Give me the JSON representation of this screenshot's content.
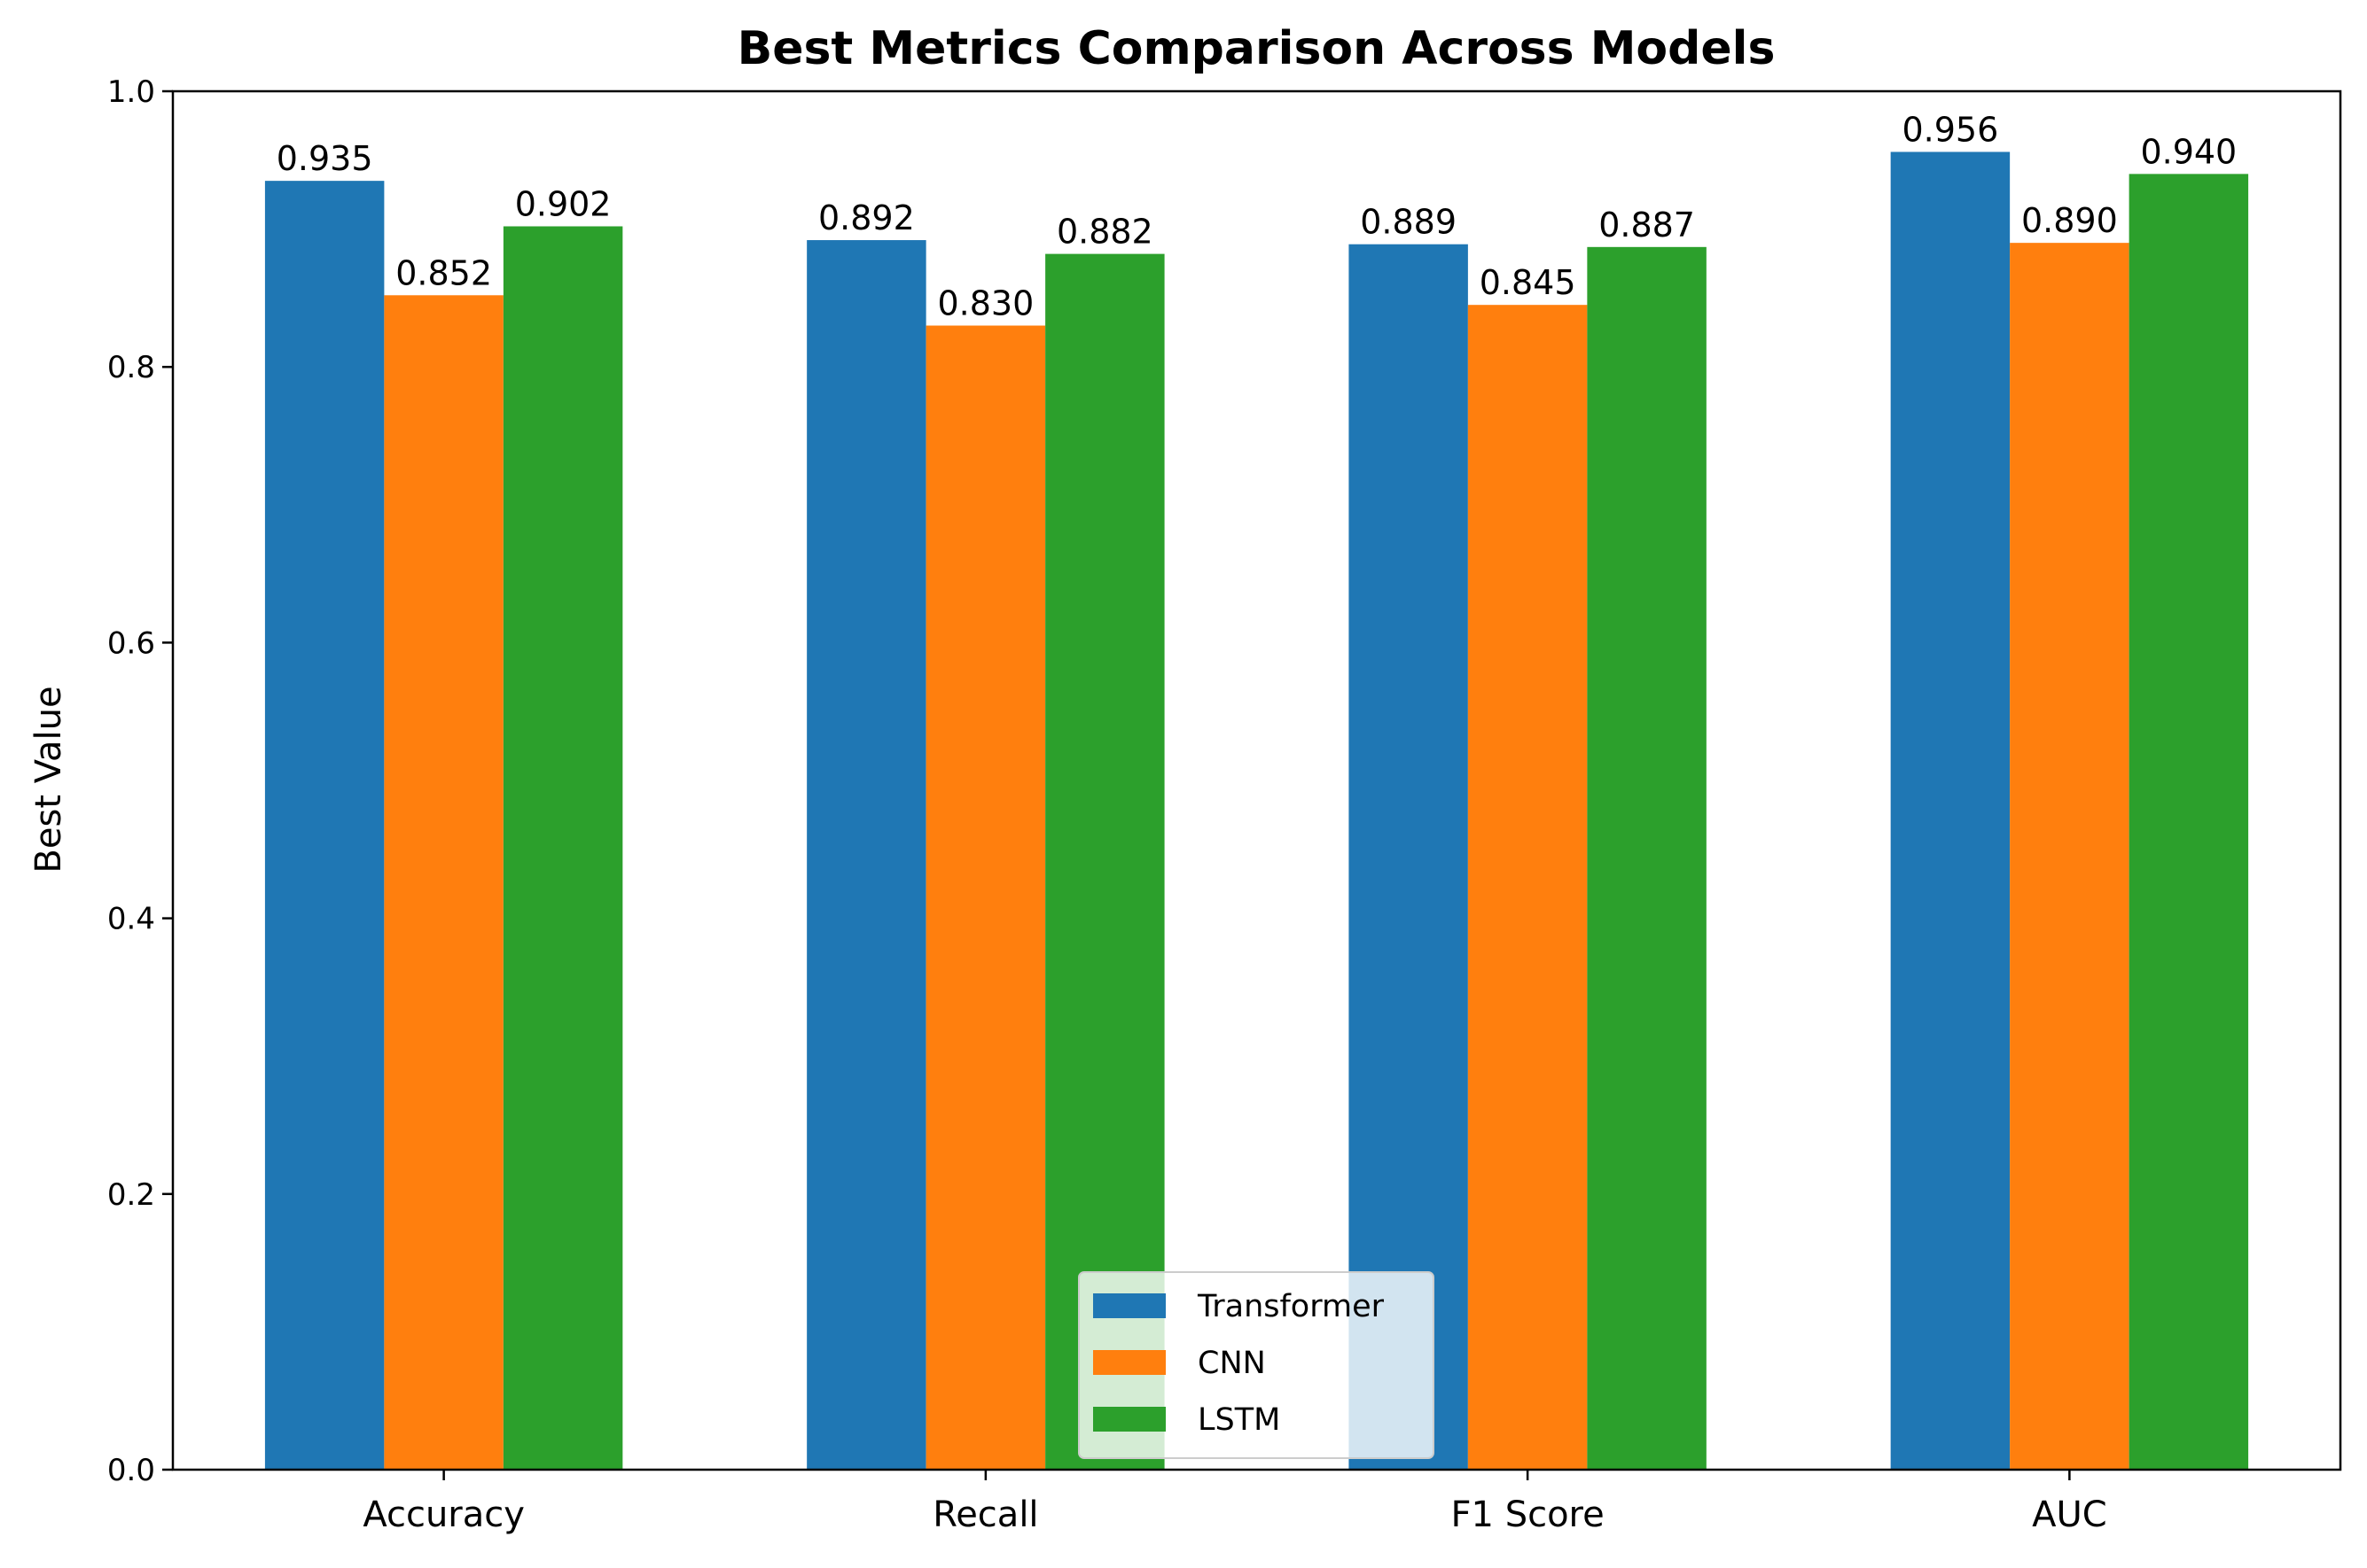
{
  "chart_data": {
    "type": "bar",
    "title": "Best Metrics Comparison Across Models",
    "xlabel": "",
    "ylabel": "Best Value",
    "ylim": [
      0,
      1.0
    ],
    "yticks": [
      "0.0",
      "0.2",
      "0.4",
      "0.6",
      "0.8",
      "1.0"
    ],
    "categories": [
      "Accuracy",
      "Recall",
      "F1 Score",
      "AUC"
    ],
    "series": [
      {
        "name": "Transformer",
        "color": "#1f77b4",
        "values": [
          0.935,
          0.892,
          0.889,
          0.956
        ],
        "labels": [
          "0.935",
          "0.892",
          "0.889",
          "0.956"
        ]
      },
      {
        "name": "CNN",
        "color": "#ff7f0e",
        "values": [
          0.852,
          0.83,
          0.845,
          0.89
        ],
        "labels": [
          "0.852",
          "0.830",
          "0.845",
          "0.890"
        ]
      },
      {
        "name": "LSTM",
        "color": "#2ca02c",
        "values": [
          0.902,
          0.882,
          0.887,
          0.94
        ],
        "labels": [
          "0.902",
          "0.882",
          "0.887",
          "0.940"
        ]
      }
    ],
    "grid": false,
    "legend_position": "lower-center"
  }
}
